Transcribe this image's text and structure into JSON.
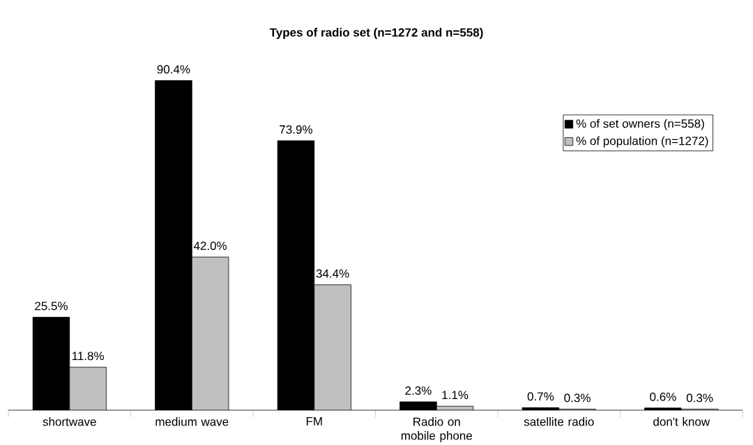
{
  "chart_data": {
    "type": "bar",
    "title": "Types of radio set (n=1272 and n=558)",
    "categories": [
      "shortwave",
      "medium wave",
      "FM",
      "Radio on mobile phone",
      "satellite radio",
      "don't know"
    ],
    "series": [
      {
        "name": "% of set owners (n=558)",
        "color": "#000000",
        "values": [
          25.5,
          90.4,
          73.9,
          2.3,
          0.7,
          0.6
        ],
        "value_labels": [
          "25.5%",
          "90.4%",
          "73.9%",
          "2.3%",
          "0.7%",
          "0.6%"
        ]
      },
      {
        "name": "% of population (n=1272)",
        "color": "#c0c0c0",
        "values": [
          11.8,
          42.0,
          34.4,
          1.1,
          0.3,
          0.3
        ],
        "value_labels": [
          "11.8%",
          "42.0%",
          "34.4%",
          "1.1%",
          "0.3%",
          "0.3%"
        ]
      }
    ],
    "legend": "top right"
  }
}
